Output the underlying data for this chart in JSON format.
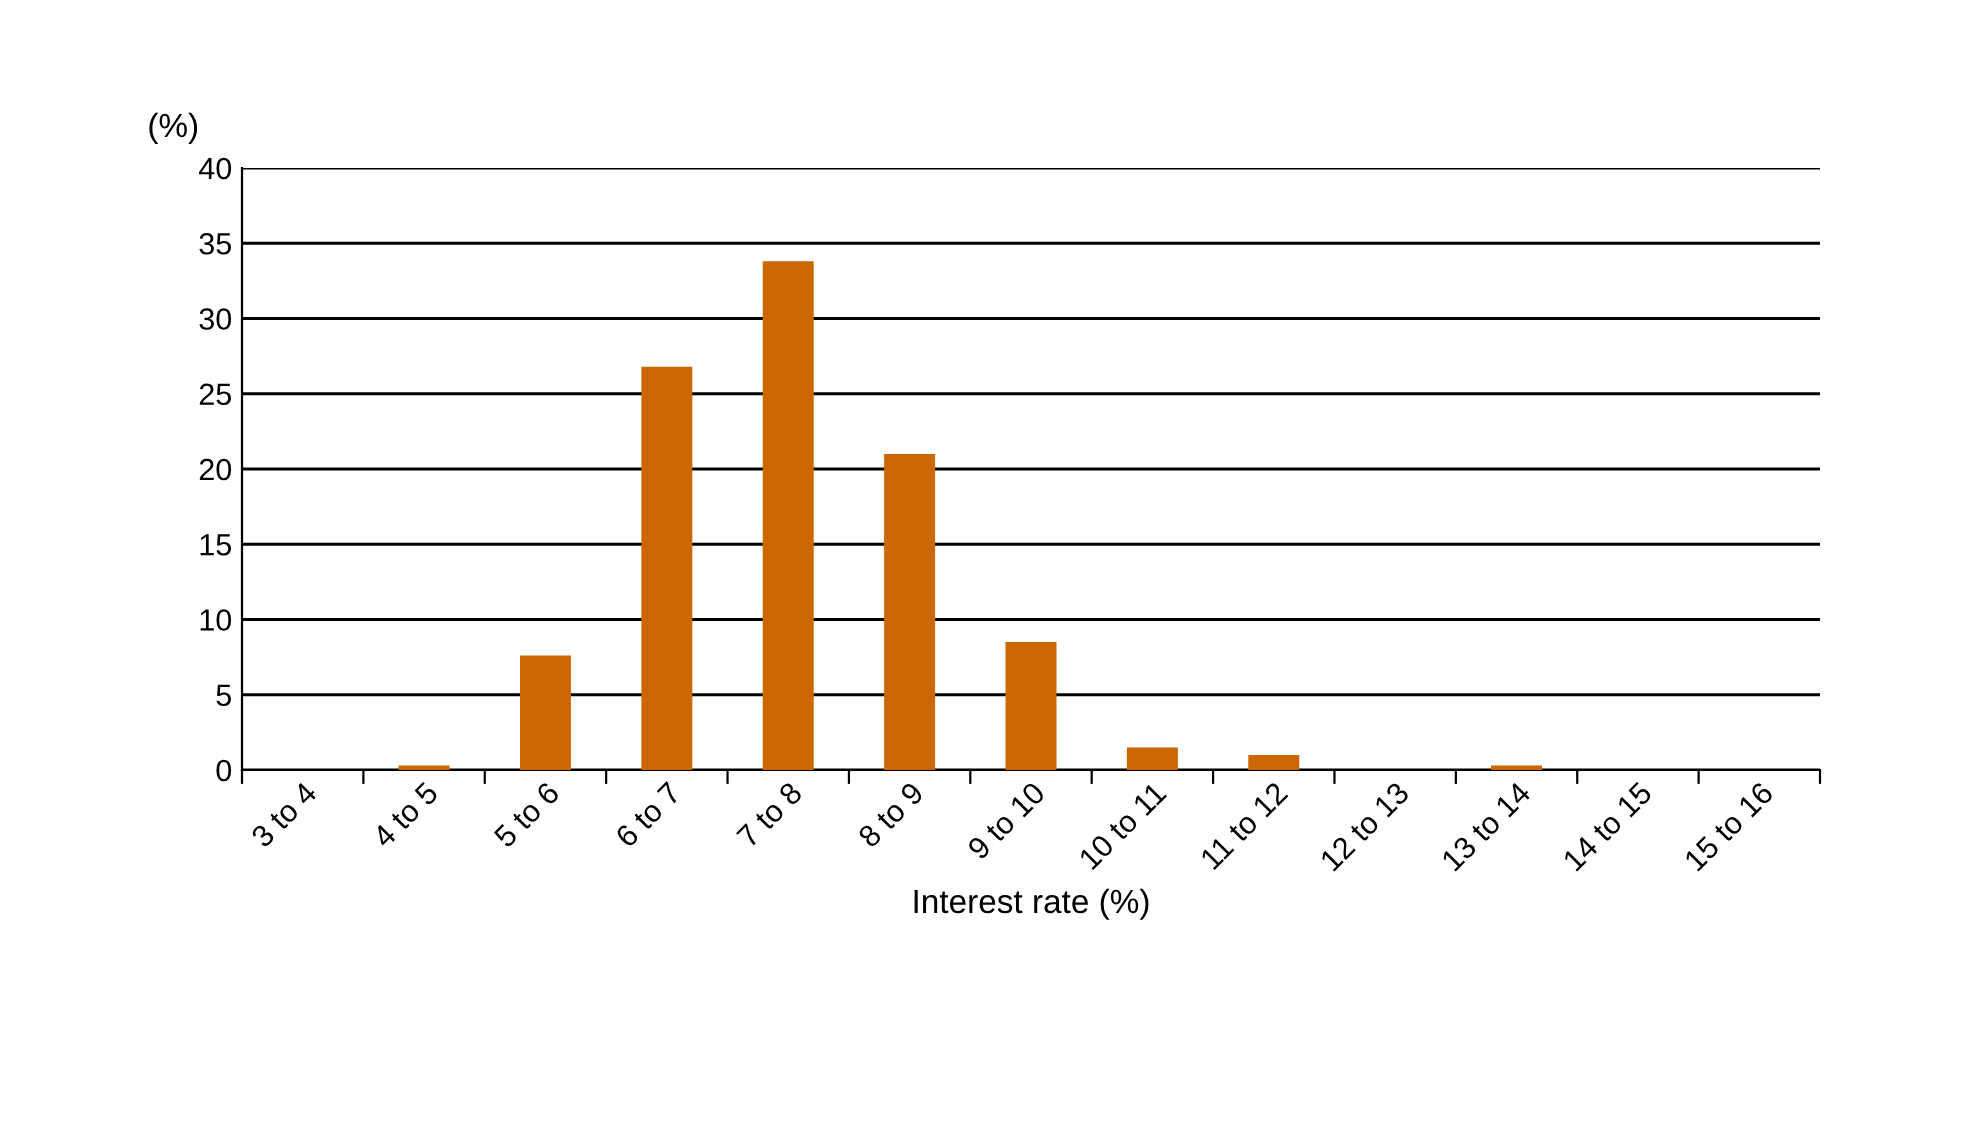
{
  "chart_data": {
    "type": "bar",
    "ylabel": "(%)",
    "xlabel": "Interest rate (%)",
    "categories": [
      "3 to 4",
      "4 to 5",
      "5 to 6",
      "6 to 7",
      "7 to 8",
      "8 to 9",
      "9 to 10",
      "10 to 11",
      "11 to 12",
      "12 to 13",
      "13 to 14",
      "14 to 15",
      "15 to 16"
    ],
    "values": [
      0,
      0.3,
      7.6,
      26.8,
      33.8,
      21,
      8.5,
      1.5,
      1.0,
      0,
      0.3,
      0,
      0
    ],
    "color": "#cc6600",
    "ylim": [
      0,
      40
    ],
    "yticks": [
      0,
      5,
      10,
      15,
      20,
      25,
      30,
      35,
      40
    ],
    "grid": "y",
    "legend": false
  }
}
